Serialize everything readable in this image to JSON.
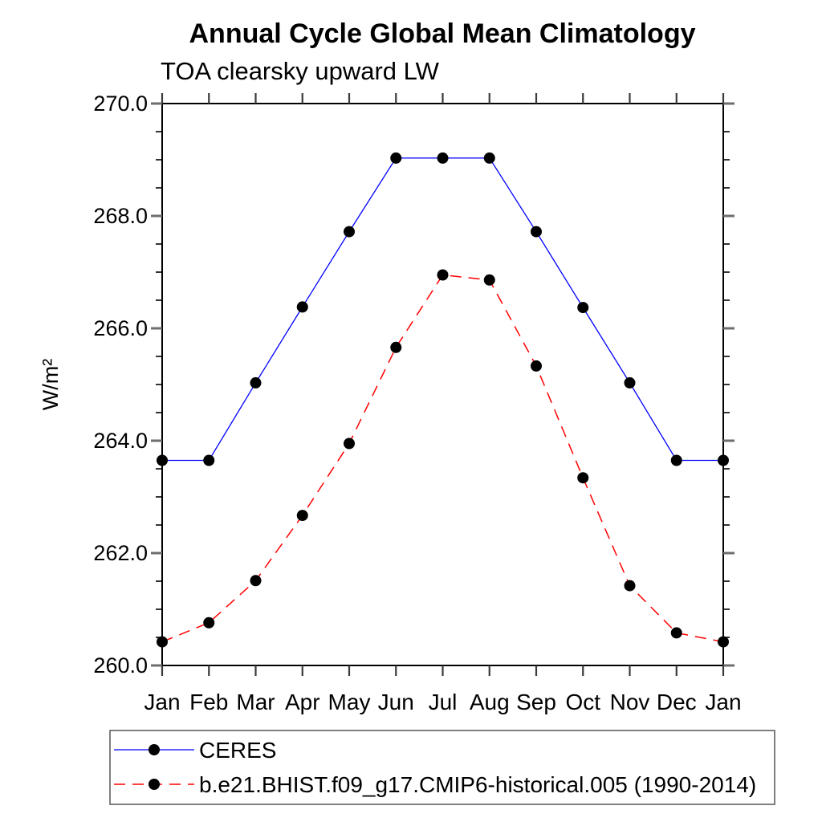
{
  "chart": {
    "title": "Annual Cycle Global Mean Climatology",
    "subtitle": "TOA clearsky upward LW",
    "ylabel": "W/m²"
  },
  "chart_data": {
    "type": "line",
    "title": "Annual Cycle Global Mean Climatology",
    "subtitle": "TOA clearsky upward LW",
    "xlabel": "",
    "ylabel": "W/m2",
    "categories": [
      "Jan",
      "Feb",
      "Mar",
      "Apr",
      "May",
      "Jun",
      "Jul",
      "Aug",
      "Sep",
      "Oct",
      "Nov",
      "Dec",
      "Jan"
    ],
    "ylim": [
      260.0,
      270.0
    ],
    "y_major_tick_step": 2.0,
    "y_minor_tick_step": 0.5,
    "y_tick_labels": [
      "260.0",
      "262.0",
      "264.0",
      "266.0",
      "268.0",
      "270.0"
    ],
    "grid": "off",
    "legend_position": "bottom-left-box",
    "marker_color": "#000000",
    "series": [
      {
        "name": "CERES",
        "color": "#0000ff",
        "line_style": "solid",
        "marker": "filled-circle",
        "values": [
          263.65,
          263.65,
          265.03,
          266.38,
          267.72,
          269.03,
          269.03,
          269.03,
          267.72,
          266.37,
          265.03,
          263.65,
          263.65
        ]
      },
      {
        "name": "b.e21.BHIST.f09_g17.CMIP6-historical.005 (1990-2014)",
        "color": "#ff0000",
        "line_style": "dashed",
        "marker": "filled-circle",
        "values": [
          260.42,
          260.76,
          261.51,
          262.67,
          263.95,
          265.66,
          266.95,
          266.86,
          265.33,
          263.34,
          261.42,
          260.58,
          260.42
        ]
      }
    ]
  }
}
